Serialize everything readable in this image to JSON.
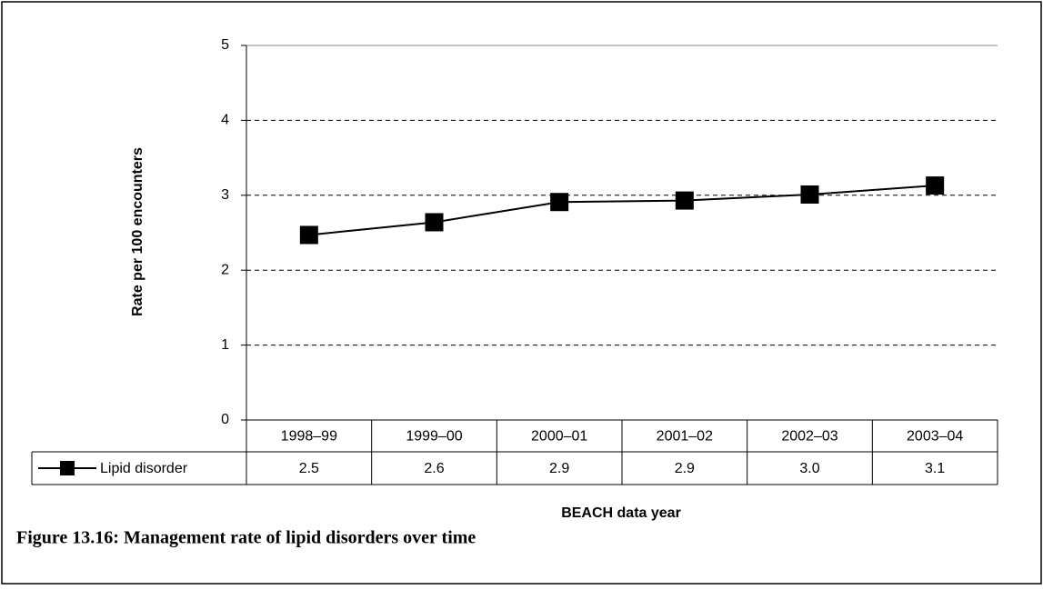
{
  "chart_data": {
    "type": "line",
    "caption": "Figure 13.16: Management rate of lipid disorders over time",
    "x_label": "BEACH data year",
    "y_label": "Rate per 100 encounters",
    "categories": [
      "1998–99",
      "1999–00",
      "2000–01",
      "2001–02",
      "2002–03",
      "2003–04"
    ],
    "series": [
      {
        "name": "Lipid disorder",
        "color": "#000000",
        "values": [
          2.47,
          2.64,
          2.91,
          2.93,
          3.01,
          3.13
        ],
        "value_labels": [
          "2.5",
          "2.6",
          "2.9",
          "2.9",
          "3.0",
          "3.1"
        ]
      }
    ],
    "ylim": [
      0,
      5
    ],
    "yticks": [
      0,
      1,
      2,
      3,
      4,
      5
    ],
    "grid": true
  }
}
